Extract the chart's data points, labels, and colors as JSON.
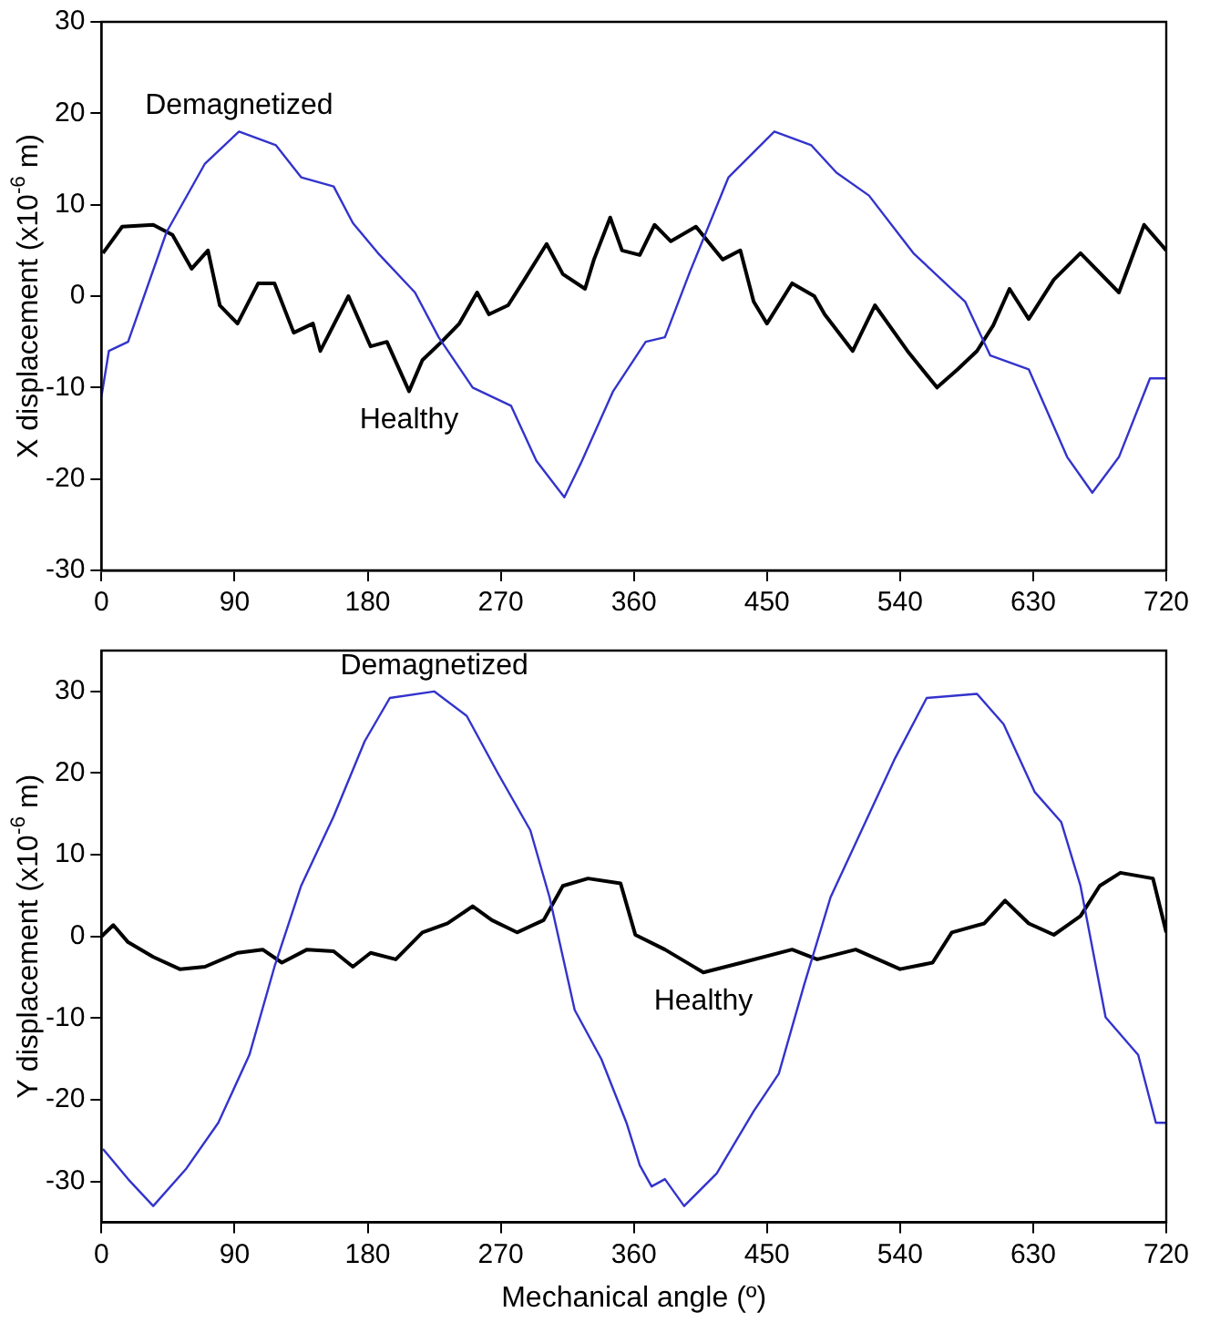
{
  "chart_data": [
    {
      "type": "line",
      "ylabel": "X displacement (x10$^{-6}$ m)",
      "xlim": [
        0,
        720
      ],
      "xticks": [
        0,
        90,
        180,
        270,
        360,
        450,
        540,
        630,
        720
      ],
      "ylim": [
        -30,
        30
      ],
      "yticks": [
        -30,
        -20,
        -10,
        0,
        10,
        20,
        30
      ],
      "marker": "none",
      "series": [
        {
          "name": "Demagnetized",
          "color": "#3333cc",
          "x": [
            0,
            5,
            18,
            44,
            70,
            93,
            118,
            135,
            157,
            170,
            187,
            212,
            228,
            251,
            277,
            294,
            313,
            325,
            346,
            368,
            381,
            398,
            424,
            455,
            480,
            497,
            519,
            549,
            584,
            601,
            627,
            653,
            670,
            688,
            709,
            720
          ],
          "values": [
            -11,
            -6,
            -5,
            7,
            14.5,
            18,
            16.5,
            13,
            12,
            8,
            4.7,
            0.4,
            -4.5,
            -10,
            -12,
            -18,
            -22,
            -18,
            -10.4,
            -5,
            -4.5,
            2.7,
            13,
            18,
            16.5,
            13.5,
            11,
            4.7,
            -0.6,
            -6.5,
            -8,
            -17.6,
            -21.5,
            -17.6,
            -9,
            -9
          ]
        },
        {
          "name": "Healthy",
          "color": "#000000",
          "x": [
            1,
            14,
            35,
            48,
            61,
            72,
            80,
            92,
            106,
            117,
            130,
            143,
            148,
            167,
            182,
            193,
            208,
            217,
            230,
            242,
            254,
            262,
            275,
            286,
            301,
            312,
            327,
            333,
            344,
            352,
            364,
            374,
            385,
            402,
            420,
            432,
            441,
            450,
            467,
            482,
            489,
            508,
            523,
            545,
            565,
            579,
            592,
            603,
            614,
            627,
            644,
            662,
            688,
            705,
            720
          ],
          "values": [
            4.7,
            7.6,
            7.8,
            6.7,
            3,
            5,
            -1,
            -3,
            1.4,
            1.4,
            -4,
            -3,
            -6,
            0,
            -5.5,
            -5,
            -10.4,
            -7,
            -5,
            -3,
            0.4,
            -2,
            -1,
            1.8,
            5.7,
            2.4,
            0.8,
            4,
            8.6,
            5,
            4.5,
            7.8,
            6,
            7.6,
            4,
            5,
            -0.6,
            -3,
            1.4,
            0,
            -2,
            -6,
            -1,
            -6,
            -10,
            -8,
            -6,
            -3.2,
            0.8,
            -2.5,
            1.8,
            4.7,
            0.4,
            7.8,
            5
          ]
        }
      ]
    },
    {
      "type": "line",
      "xlabel": "Mechanical angle (º)",
      "ylabel": "Y displacement (x10$^{-6}$ m)",
      "xlim": [
        0,
        720
      ],
      "xticks": [
        0,
        90,
        180,
        270,
        360,
        450,
        540,
        630,
        720
      ],
      "ylim": [
        -35,
        35
      ],
      "yticks": [
        -30,
        -20,
        -10,
        0,
        10,
        20,
        30
      ],
      "marker": "none",
      "series": [
        {
          "name": "Demagnetized",
          "color": "#3333cc",
          "x": [
            1,
            18,
            35,
            57,
            79,
            100,
            117,
            135,
            157,
            178,
            195,
            225,
            247,
            268,
            290,
            303,
            320,
            338,
            355,
            364,
            372,
            381,
            394,
            416,
            441,
            458,
            475,
            493,
            514,
            536,
            558,
            592,
            610,
            631,
            649,
            662,
            679,
            701,
            713,
            720
          ],
          "values": [
            -26,
            -29.7,
            -33,
            -28.5,
            -22.8,
            -14.5,
            -3.7,
            6.2,
            14.7,
            23.9,
            29.2,
            30,
            27,
            20,
            13,
            4.8,
            -9,
            -15,
            -22.8,
            -28,
            -30.6,
            -29.7,
            -33,
            -29,
            -21.4,
            -16.8,
            -6,
            4.8,
            13,
            21.6,
            29.2,
            29.7,
            26,
            17.7,
            14,
            6.2,
            -9.9,
            -14.5,
            -22.8,
            -22.8
          ]
        },
        {
          "name": "Healthy",
          "color": "#000000",
          "x": [
            0,
            8,
            18,
            35,
            53,
            70,
            92,
            109,
            122,
            139,
            157,
            170,
            182,
            199,
            217,
            234,
            251,
            264,
            281,
            299,
            312,
            329,
            351,
            361,
            381,
            407,
            433,
            467,
            484,
            510,
            540,
            562,
            575,
            597,
            611,
            627,
            644,
            662,
            675,
            689,
            711,
            720
          ],
          "values": [
            0,
            1.4,
            -0.7,
            -2.5,
            -4,
            -3.7,
            -2,
            -1.6,
            -3.2,
            -1.6,
            -1.8,
            -3.7,
            -2,
            -2.8,
            0.5,
            1.6,
            3.7,
            2,
            0.5,
            2,
            6.2,
            7.1,
            6.5,
            0.2,
            -1.6,
            -4.4,
            -3.2,
            -1.6,
            -2.8,
            -1.6,
            -4,
            -3.2,
            0.5,
            1.6,
            4.4,
            1.6,
            0.2,
            2.5,
            6.2,
            7.8,
            7.1,
            0.5
          ]
        }
      ]
    }
  ]
}
